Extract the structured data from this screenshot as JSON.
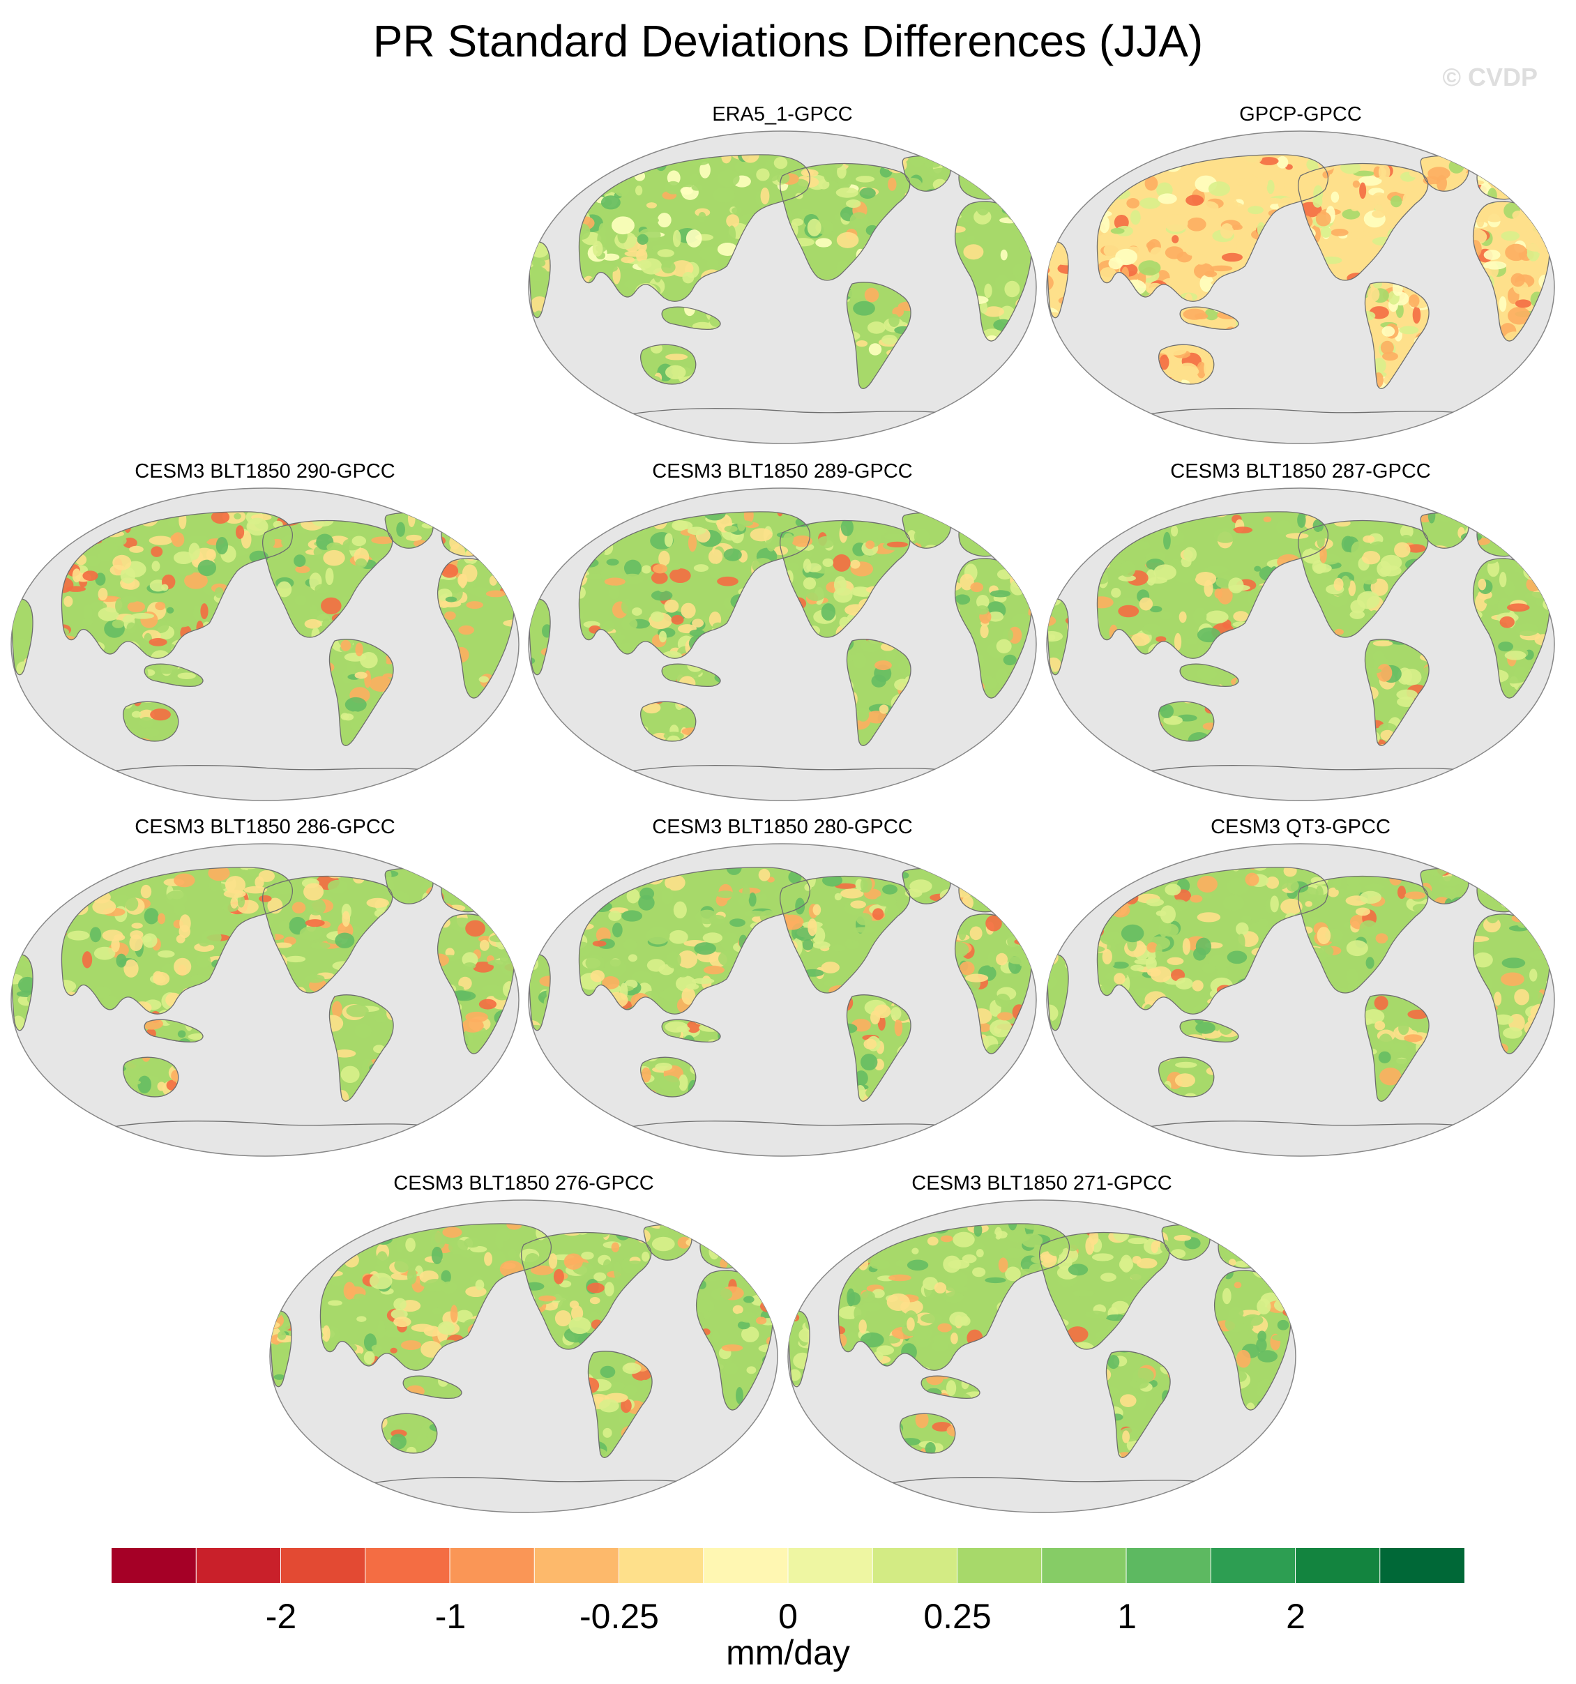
{
  "title": "PR Standard Deviations Differences (JJA)",
  "watermark": "© CVDP",
  "panels": [
    {
      "label": "ERA5_1-GPCC",
      "palette": [
        "#a7d96a",
        "#d9ef8b",
        "#fee08b",
        "#66bd63",
        "#ffffbf",
        "#fdae61"
      ]
    },
    {
      "label": "GPCP-GPCC",
      "palette": [
        "#fee08b",
        "#fdae61",
        "#ffffbf",
        "#d9ef8b",
        "#f46d43",
        "#a7d96a"
      ]
    },
    {
      "label": "CESM3 BLT1850 290-GPCC",
      "palette": [
        "#a7d96a",
        "#fee08b",
        "#d9ef8b",
        "#fdae61",
        "#f46d43",
        "#66bd63"
      ]
    },
    {
      "label": "CESM3 BLT1850 289-GPCC",
      "palette": [
        "#a7d96a",
        "#d9ef8b",
        "#fee08b",
        "#66bd63",
        "#fdae61",
        "#f46d43"
      ]
    },
    {
      "label": "CESM3 BLT1850 287-GPCC",
      "palette": [
        "#a7d96a",
        "#d9ef8b",
        "#fee08b",
        "#66bd63",
        "#fdae61",
        "#f46d43"
      ]
    },
    {
      "label": "CESM3 BLT1850 286-GPCC",
      "palette": [
        "#a7d96a",
        "#fee08b",
        "#d9ef8b",
        "#fdae61",
        "#66bd63",
        "#f46d43"
      ]
    },
    {
      "label": "CESM3 BLT1850 280-GPCC",
      "palette": [
        "#a7d96a",
        "#d9ef8b",
        "#fee08b",
        "#66bd63",
        "#fdae61",
        "#f46d43"
      ]
    },
    {
      "label": "CESM3 QT3-GPCC",
      "palette": [
        "#a7d96a",
        "#fee08b",
        "#d9ef8b",
        "#fdae61",
        "#66bd63",
        "#f46d43"
      ]
    },
    {
      "label": "CESM3 BLT1850 276-GPCC",
      "palette": [
        "#a7d96a",
        "#fee08b",
        "#d9ef8b",
        "#fdae61",
        "#66bd63",
        "#f46d43"
      ]
    },
    {
      "label": "CESM3 BLT1850 271-GPCC",
      "palette": [
        "#a7d96a",
        "#d9ef8b",
        "#fee08b",
        "#66bd63",
        "#fdae61",
        "#f46d43"
      ]
    }
  ],
  "colorbar": {
    "colors": [
      "#a50026",
      "#c9202a",
      "#e34a33",
      "#f46d43",
      "#fa9656",
      "#fdb96b",
      "#fee08b",
      "#fff7b2",
      "#eef6a2",
      "#d3eb84",
      "#a7d96a",
      "#86cc66",
      "#5db961",
      "#2d9e52",
      "#13843f",
      "#006837"
    ],
    "tick_labels": [
      "-2",
      "-1",
      "-0.25",
      "0",
      "0.25",
      "1",
      "2"
    ],
    "units": "mm/day"
  },
  "map_colors": {
    "ocean": "#e6e6e6",
    "coast": "#6e6e6e",
    "outline": "#888888"
  }
}
